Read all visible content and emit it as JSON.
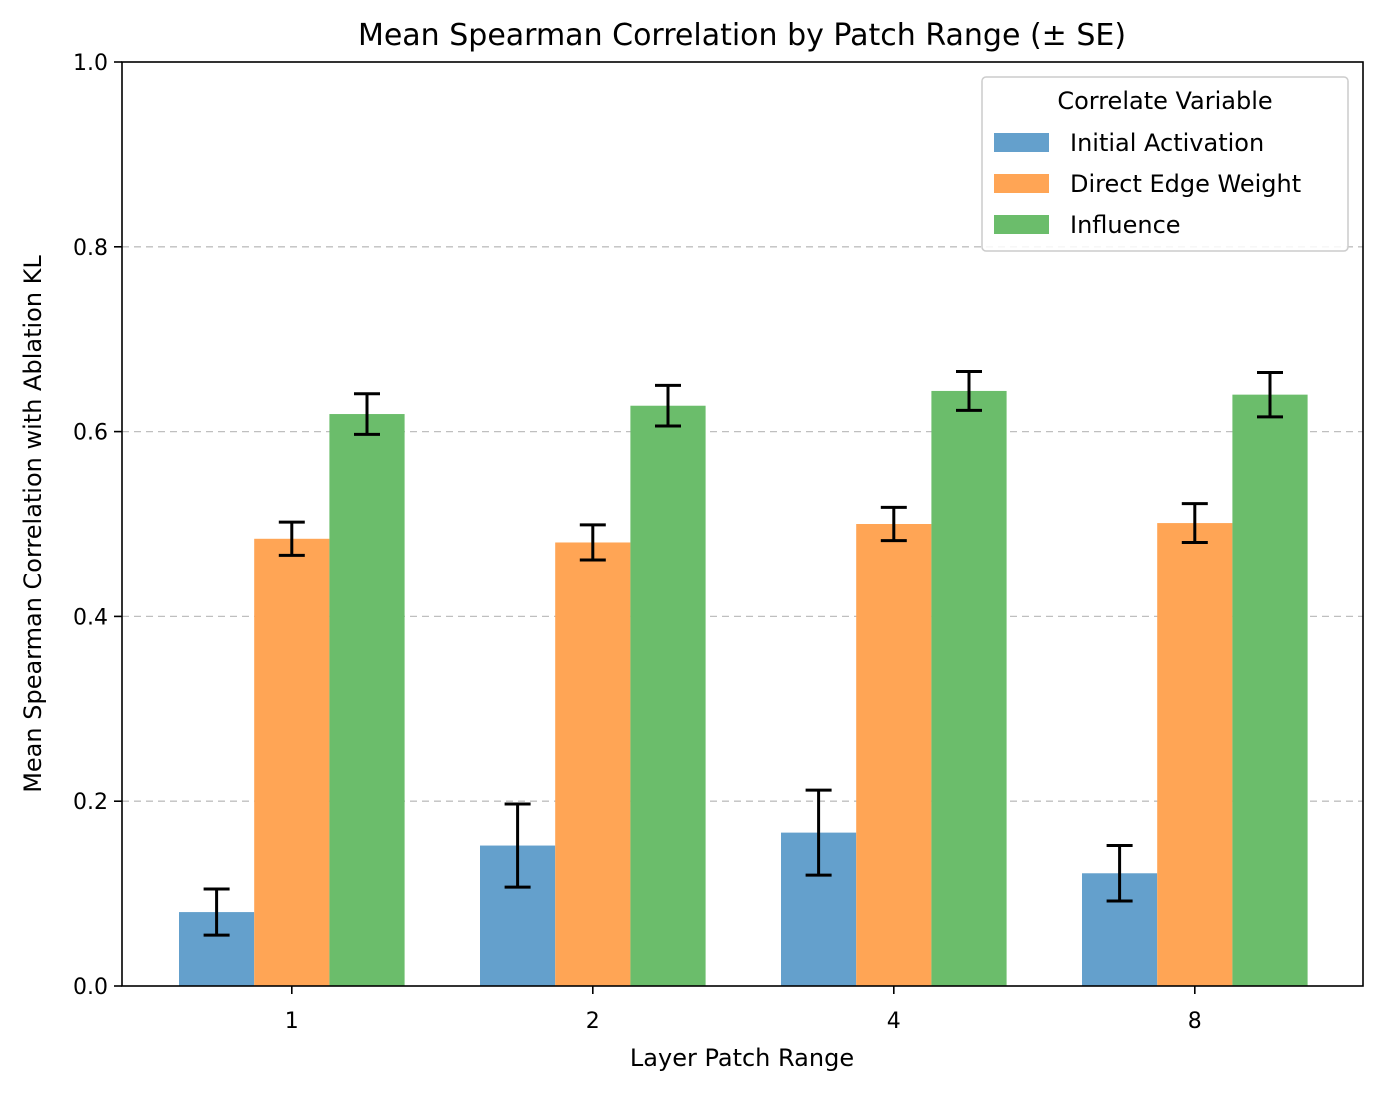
{
  "chart_data": {
    "type": "bar",
    "title": "Mean Spearman Correlation by Patch Range (± SE)",
    "xlabel": "Layer Patch Range",
    "ylabel": "Mean Spearman Correlation with Ablation KL",
    "categories": [
      "1",
      "2",
      "4",
      "8"
    ],
    "ylim": [
      0,
      1.0
    ],
    "yticks": [
      "0.0",
      "0.2",
      "0.4",
      "0.6",
      "0.8",
      "1.0"
    ],
    "grid": "y-dashed",
    "legend": {
      "title": "Correlate Variable",
      "placement": "top-right"
    },
    "series": [
      {
        "name": "Initial Activation",
        "color": "#64a0cc",
        "values": [
          0.08,
          0.152,
          0.166,
          0.122
        ],
        "errors": [
          0.025,
          0.045,
          0.046,
          0.03
        ]
      },
      {
        "name": "Direct Edge Weight",
        "color": "#ffa555",
        "values": [
          0.484,
          0.48,
          0.5,
          0.501
        ],
        "errors": [
          0.018,
          0.019,
          0.018,
          0.021
        ]
      },
      {
        "name": "Influence",
        "color": "#6bbd6b",
        "values": [
          0.619,
          0.628,
          0.644,
          0.64
        ],
        "errors": [
          0.022,
          0.022,
          0.021,
          0.024
        ]
      }
    ]
  }
}
